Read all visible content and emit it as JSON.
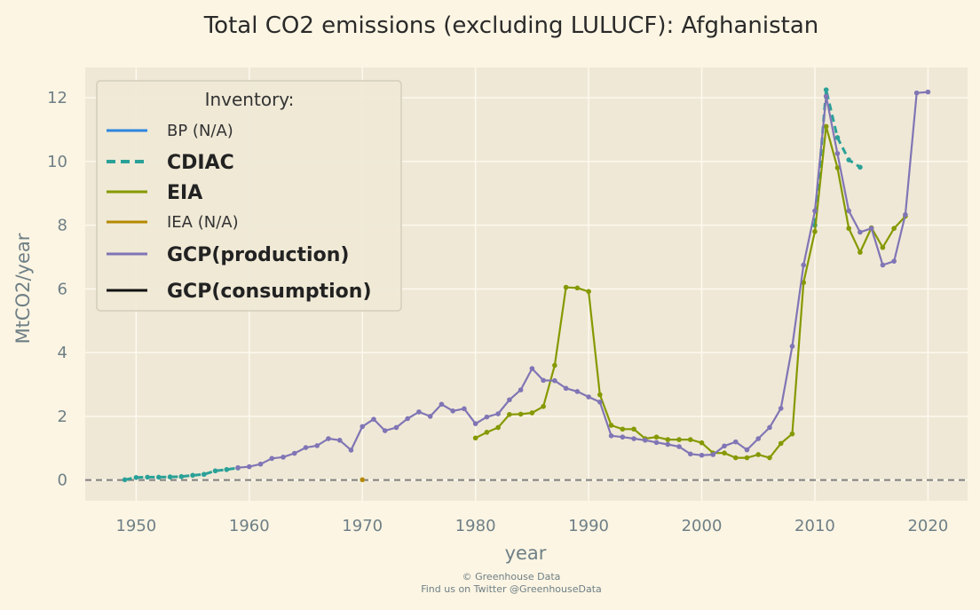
{
  "chart_data": {
    "type": "line",
    "title": "Total CO2 emissions (excluding LULUCF): Afghanistan",
    "xlabel": "year",
    "ylabel": "MtCO2/year",
    "xlim": [
      1945.5,
      2023.5
    ],
    "ylim": [
      -0.65,
      12.95
    ],
    "xticks": [
      1950,
      1960,
      1970,
      1980,
      1990,
      2000,
      2010,
      2020
    ],
    "yticks": [
      0,
      2,
      4,
      6,
      8,
      10,
      12
    ],
    "grid": true,
    "legend_placement": "upper-left",
    "legend_title": "Inventory:",
    "legend": [
      {
        "label": "BP (N/A)",
        "color": "#2e86de",
        "style": "solid",
        "bold": false
      },
      {
        "label": "CDIAC",
        "color": "#2aa198",
        "style": "dashed",
        "bold": true
      },
      {
        "label": "EIA",
        "color": "#859900",
        "style": "solid",
        "bold": true
      },
      {
        "label": "IEA (N/A)",
        "color": "#b58900",
        "style": "solid",
        "bold": false
      },
      {
        "label": "GCP(production)",
        "color": "#8075b5",
        "style": "solid",
        "bold": true
      },
      {
        "label": "GCP(consumption)",
        "color": "#111111",
        "style": "solid",
        "bold": true
      }
    ],
    "series": [
      {
        "name": "CDIAC",
        "color": "#2aa198",
        "dashed": true,
        "x": [
          1949,
          1950,
          1951,
          1952,
          1953,
          1954,
          1955,
          1956,
          1957,
          1958,
          1959,
          2010,
          2011,
          2012,
          2013,
          2014
        ],
        "y": [
          0.01,
          0.08,
          0.09,
          0.09,
          0.1,
          0.11,
          0.15,
          0.18,
          0.29,
          0.33,
          0.38,
          8.0,
          12.25,
          10.75,
          10.05,
          9.82
        ]
      },
      {
        "name": "EIA",
        "color": "#859900",
        "dashed": false,
        "x": [
          1980,
          1981,
          1982,
          1983,
          1984,
          1985,
          1986,
          1987,
          1988,
          1989,
          1990,
          1991,
          1992,
          1993,
          1994,
          1995,
          1996,
          1997,
          1998,
          1999,
          2000,
          2001,
          2002,
          2003,
          2004,
          2005,
          2006,
          2007,
          2008,
          2009,
          2010,
          2011,
          2012,
          2013,
          2014,
          2015,
          2016,
          2017,
          2018
        ],
        "y": [
          1.32,
          1.5,
          1.65,
          2.06,
          2.07,
          2.11,
          2.31,
          3.6,
          6.05,
          6.03,
          5.92,
          2.68,
          1.72,
          1.6,
          1.6,
          1.3,
          1.35,
          1.27,
          1.27,
          1.27,
          1.17,
          0.85,
          0.85,
          0.7,
          0.7,
          0.8,
          0.7,
          1.15,
          1.45,
          6.2,
          7.8,
          11.1,
          9.8,
          7.9,
          7.15,
          7.92,
          7.3,
          7.9,
          8.28
        ]
      },
      {
        "name": "IEA",
        "color": "#b58900",
        "dashed": false,
        "x": [
          1970
        ],
        "y": [
          0.01
        ]
      },
      {
        "name": "GCP(production)",
        "color": "#8075b5",
        "dashed": false,
        "x": [
          1959,
          1960,
          1961,
          1962,
          1963,
          1964,
          1965,
          1966,
          1967,
          1968,
          1969,
          1970,
          1971,
          1972,
          1973,
          1974,
          1975,
          1976,
          1977,
          1978,
          1979,
          1980,
          1981,
          1982,
          1983,
          1984,
          1985,
          1986,
          1987,
          1988,
          1989,
          1990,
          1991,
          1992,
          1993,
          1994,
          1995,
          1996,
          1997,
          1998,
          1999,
          2000,
          2001,
          2002,
          2003,
          2004,
          2005,
          2006,
          2007,
          2008,
          2009,
          2010,
          2011,
          2012,
          2013,
          2014,
          2015,
          2016,
          2017,
          2018,
          2019,
          2020
        ],
        "y": [
          0.39,
          0.42,
          0.5,
          0.68,
          0.72,
          0.84,
          1.02,
          1.08,
          1.3,
          1.25,
          0.94,
          1.68,
          1.91,
          1.55,
          1.65,
          1.93,
          2.14,
          2.0,
          2.38,
          2.17,
          2.24,
          1.77,
          1.98,
          2.08,
          2.52,
          2.83,
          3.5,
          3.13,
          3.12,
          2.88,
          2.78,
          2.61,
          2.45,
          1.39,
          1.35,
          1.3,
          1.25,
          1.18,
          1.12,
          1.05,
          0.82,
          0.78,
          0.8,
          1.07,
          1.2,
          0.95,
          1.3,
          1.65,
          2.25,
          4.2,
          6.75,
          8.45,
          12.05,
          10.25,
          8.45,
          7.78,
          7.9,
          6.75,
          6.87,
          8.33,
          12.15,
          12.18
        ]
      }
    ]
  },
  "credit": {
    "line1": "© Greenhouse Data",
    "line2": "Find us on Twitter @GreenhouseData"
  }
}
